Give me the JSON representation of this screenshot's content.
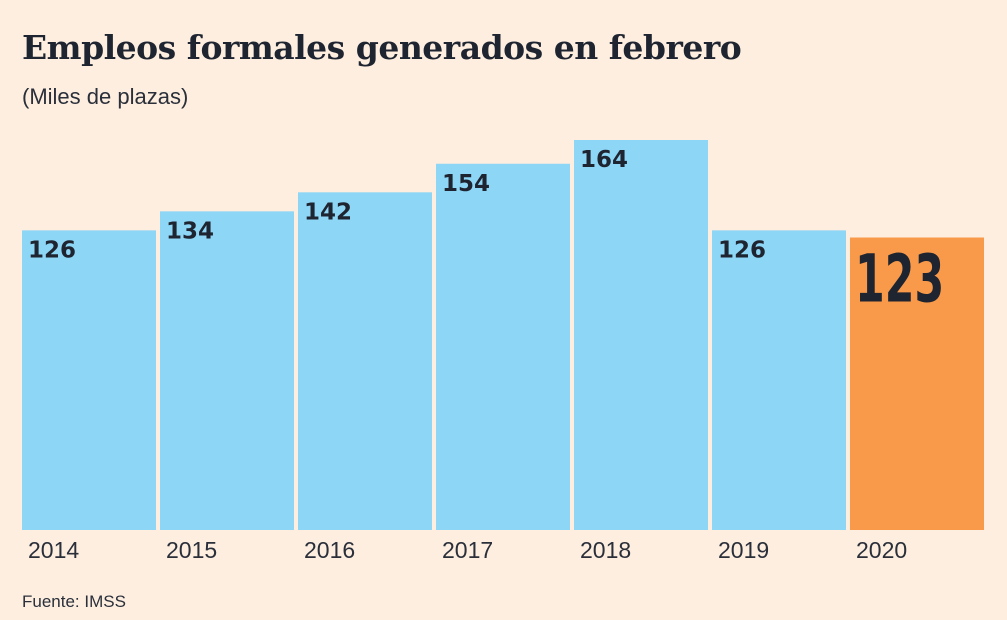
{
  "chart_data": {
    "type": "bar",
    "title": "Empleos formales generados en febrero",
    "subtitle": "(Miles de plazas)",
    "source": "Fuente: IMSS",
    "categories": [
      "2014",
      "2015",
      "2016",
      "2017",
      "2018",
      "2019",
      "2020"
    ],
    "values": [
      126,
      134,
      142,
      154,
      164,
      126,
      123
    ],
    "data_labels": [
      "126",
      "134",
      "142",
      "154",
      "164",
      "126",
      "123"
    ],
    "highlight_index": 6,
    "ylim": [
      0,
      164
    ],
    "grid": false,
    "colors": {
      "bar": "#8ed6f6",
      "highlight": "#f89a4a",
      "background": "#fdeee0",
      "text": "#1e2430"
    }
  }
}
